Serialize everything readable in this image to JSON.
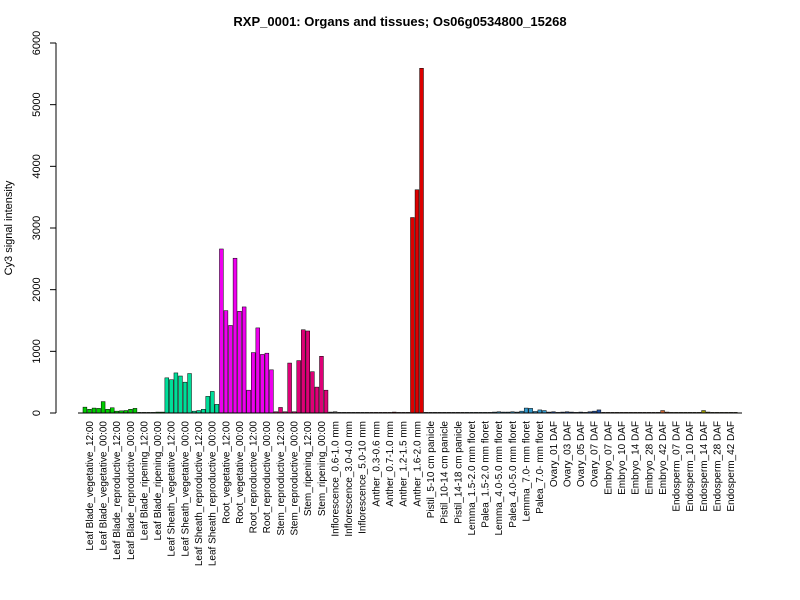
{
  "chart_data": {
    "type": "bar",
    "title": "RXP_0001: Organs and tissues; Os06g0534800_15268",
    "xlabel": "",
    "ylabel": "Cy3 signal intensity",
    "ylim": [
      0,
      6000
    ],
    "yticks": [
      0,
      1000,
      2000,
      3000,
      4000,
      5000,
      6000
    ],
    "grid": false,
    "legend": "none",
    "groups": [
      {
        "label": "Leaf Blade_vegetative_12:00",
        "color": "#00cc00",
        "values": [
          95,
          60,
          80
        ]
      },
      {
        "label": "Leaf Blade_vegetative_00:00",
        "color": "#00cc00",
        "values": [
          75,
          185,
          60
        ]
      },
      {
        "label": "Leaf Blade_reproductive_12:00",
        "color": "#00cc00",
        "values": [
          85,
          30,
          35
        ]
      },
      {
        "label": "Leaf Blade_reproductive_00:00",
        "color": "#00cc00",
        "values": [
          40,
          60,
          75
        ]
      },
      {
        "label": "Leaf Blade_ripening_12:00",
        "color": "#00cc00",
        "values": [
          10,
          10,
          10
        ]
      },
      {
        "label": "Leaf Blade_ripening_00:00",
        "color": "#00cc00",
        "values": [
          10,
          15,
          15
        ]
      },
      {
        "label": "Leaf Sheath_vegetative_12:00",
        "color": "#00dd99",
        "values": [
          570,
          540,
          650
        ]
      },
      {
        "label": "Leaf Sheath_vegetative_00:00",
        "color": "#00dd99",
        "values": [
          600,
          500,
          640
        ]
      },
      {
        "label": "Leaf Sheath_reproductive_12:00",
        "color": "#00dd99",
        "values": [
          30,
          40,
          60
        ]
      },
      {
        "label": "Leaf Sheath_reproductive_00:00",
        "color": "#00dd99",
        "values": [
          270,
          350,
          140
        ]
      },
      {
        "label": "Root_vegetative_12:00",
        "color": "#ee00ee",
        "values": [
          2660,
          1660,
          1420
        ]
      },
      {
        "label": "Root_vegetative_00:00",
        "color": "#ee00ee",
        "values": [
          2510,
          1650,
          1720
        ]
      },
      {
        "label": "Root_reproductive_12:00",
        "color": "#ee00ee",
        "values": [
          370,
          980,
          1380
        ]
      },
      {
        "label": "Root_reproductive_00:00",
        "color": "#ee00ee",
        "values": [
          950,
          970,
          700
        ]
      },
      {
        "label": "Stem_reproductive_12:00",
        "color": "#dd0077",
        "values": [
          20,
          90,
          20
        ]
      },
      {
        "label": "Stem_reproductive_00:00",
        "color": "#dd0077",
        "values": [
          810,
          20,
          850
        ]
      },
      {
        "label": "Stem_ripening_12:00",
        "color": "#dd0077",
        "values": [
          1350,
          1330,
          670
        ]
      },
      {
        "label": "Stem_ripening_00:00",
        "color": "#dd0077",
        "values": [
          420,
          920,
          370
        ]
      },
      {
        "label": "Inflorescence_0.6-1.0 mm",
        "color": "#666666",
        "values": [
          15,
          20,
          10
        ]
      },
      {
        "label": "Inflorescence_3.0-4.0 mm",
        "color": "#666666",
        "values": [
          10,
          10,
          10
        ]
      },
      {
        "label": "Inflorescence_5.0-10 mm",
        "color": "#666666",
        "values": [
          10,
          10,
          10
        ]
      },
      {
        "label": "Anther_0.3-0.6 mm",
        "color": "#aa0000",
        "values": [
          10,
          10,
          10
        ]
      },
      {
        "label": "Anther_0.7-1.0 mm",
        "color": "#aa0000",
        "values": [
          10,
          10,
          15
        ]
      },
      {
        "label": "Anther_1.2-1.5 mm",
        "color": "#aa0000",
        "values": [
          10,
          10,
          10
        ]
      },
      {
        "label": "Anther_1.6-2.0 mm",
        "color": "#dd0000",
        "values": [
          3170,
          3620,
          5590
        ]
      },
      {
        "label": "Pistil_5-10 cm panicle",
        "color": "#666666",
        "values": [
          10,
          10,
          10
        ]
      },
      {
        "label": "Pistil_10-14 cm panicle",
        "color": "#666666",
        "values": [
          10,
          10,
          10
        ]
      },
      {
        "label": "Pistil_14-18 cm panicle",
        "color": "#666666",
        "values": [
          10,
          10,
          10
        ]
      },
      {
        "label": "Lemma_1.5-2.0 mm floret",
        "color": "#3399cc",
        "values": [
          10,
          10,
          10
        ]
      },
      {
        "label": "Palea_1.5-2.0 mm floret",
        "color": "#3399cc",
        "values": [
          10,
          10,
          10
        ]
      },
      {
        "label": "Lemma_4.0-5.0 mm floret",
        "color": "#3399cc",
        "values": [
          15,
          20,
          15
        ]
      },
      {
        "label": "Palea_4.0-5.0 mm floret",
        "color": "#3399cc",
        "values": [
          15,
          20,
          15
        ]
      },
      {
        "label": "Lemma_7.0- mm floret",
        "color": "#3399cc",
        "values": [
          30,
          80,
          75
        ]
      },
      {
        "label": "Palea_7.0- mm floret",
        "color": "#3399cc",
        "values": [
          25,
          50,
          40
        ]
      },
      {
        "label": "Ovary_01 DAF",
        "color": "#2255aa",
        "values": [
          15,
          20,
          10
        ]
      },
      {
        "label": "Ovary_03 DAF",
        "color": "#2255aa",
        "values": [
          15,
          20,
          15
        ]
      },
      {
        "label": "Ovary_05 DAF",
        "color": "#2255aa",
        "values": [
          10,
          15,
          10
        ]
      },
      {
        "label": "Ovary_07 DAF",
        "color": "#2255aa",
        "values": [
          20,
          30,
          50
        ]
      },
      {
        "label": "Embryo_07 DAF",
        "color": "#cc6633",
        "values": [
          10,
          10,
          10
        ]
      },
      {
        "label": "Embryo_10 DAF",
        "color": "#cc6633",
        "values": [
          10,
          10,
          10
        ]
      },
      {
        "label": "Embryo_14 DAF",
        "color": "#cc6633",
        "values": [
          10,
          10,
          10
        ]
      },
      {
        "label": "Embryo_28 DAF",
        "color": "#cc6633",
        "values": [
          10,
          10,
          10
        ]
      },
      {
        "label": "Embryo_42 DAF",
        "color": "#cc6633",
        "values": [
          10,
          40,
          15
        ]
      },
      {
        "label": "Endosperm_07 DAF",
        "color": "#999900",
        "values": [
          10,
          10,
          10
        ]
      },
      {
        "label": "Endosperm_10 DAF",
        "color": "#999900",
        "values": [
          10,
          10,
          10
        ]
      },
      {
        "label": "Endosperm_14 DAF",
        "color": "#999900",
        "values": [
          10,
          40,
          15
        ]
      },
      {
        "label": "Endosperm_28 DAF",
        "color": "#999900",
        "values": [
          10,
          10,
          10
        ]
      },
      {
        "label": "Endosperm_42 DAF",
        "color": "#999900",
        "values": [
          10,
          10,
          10
        ]
      }
    ]
  }
}
